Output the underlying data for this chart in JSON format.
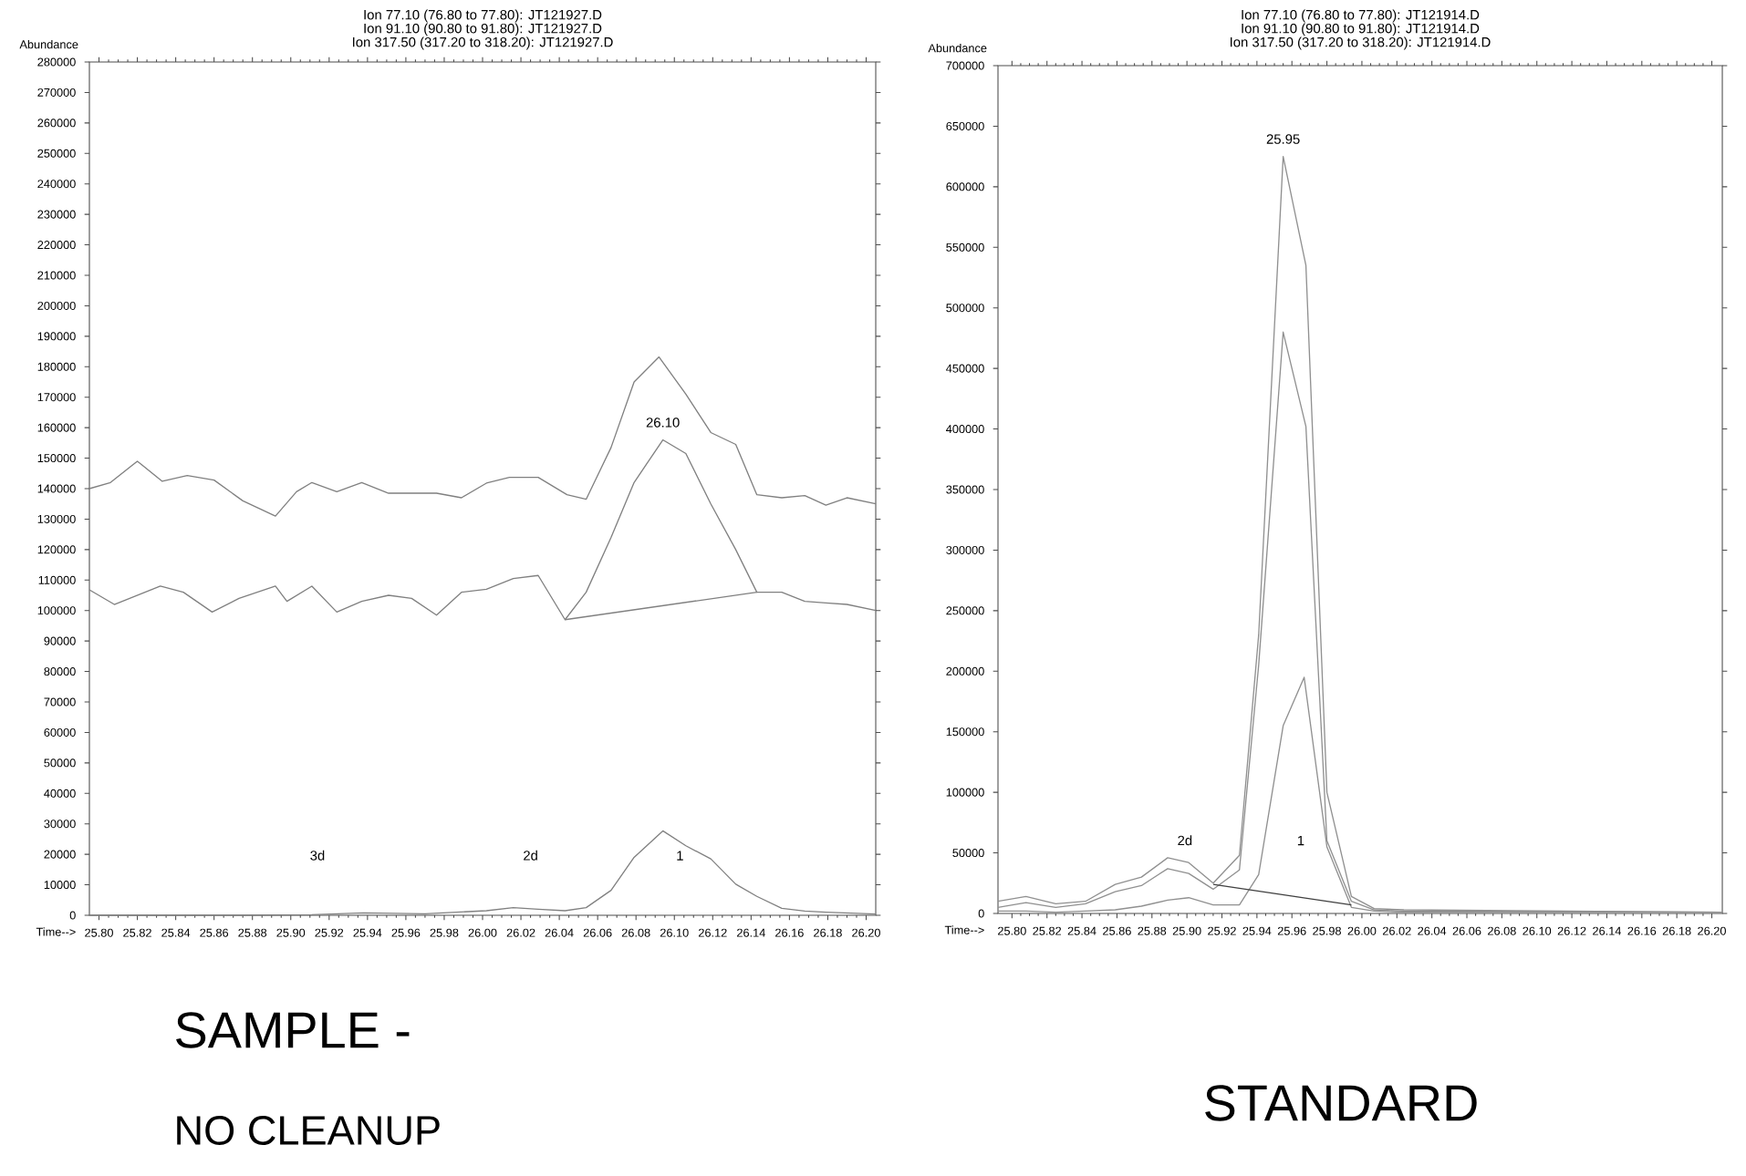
{
  "chart_data": [
    {
      "type": "line",
      "title": "Ion  77.10 (76.80 to 77.80): JT121927.D",
      "subtitle": "Ion  91.10 (90.80 to 91.80): JT121927.D",
      "xlabel": "Time-->",
      "ylabel": "Abundance",
      "annotations": [
        "Ion 317.50 (317.20 to 318.20): JT121927.D",
        "SAMPLE -",
        "NO CLEANUP",
        "3d",
        "2d",
        "1",
        {
          "text": "26.10",
          "x": 26.094,
          "y": 156000
        }
      ],
      "xlim": [
        25.795,
        26.205
      ],
      "ylim": [
        0,
        280000
      ],
      "xticks": [
        {
          "value": 25.8,
          "label": "25.80"
        },
        {
          "value": 25.82,
          "label": "25.82"
        },
        {
          "value": 25.84,
          "label": "25.84"
        },
        {
          "value": 25.86,
          "label": "25.86"
        },
        {
          "value": 25.88,
          "label": "25.88"
        },
        {
          "value": 25.9,
          "label": "25.90"
        },
        {
          "value": 25.92,
          "label": "25.92"
        },
        {
          "value": 25.94,
          "label": "25.94"
        },
        {
          "value": 25.96,
          "label": "25.96"
        },
        {
          "value": 25.98,
          "label": "25.98"
        },
        {
          "value": 26.0,
          "label": "26.00"
        },
        {
          "value": 26.02,
          "label": "26.02"
        },
        {
          "value": 26.04,
          "label": "26.04"
        },
        {
          "value": 26.06,
          "label": "26.06"
        },
        {
          "value": 26.08,
          "label": "26.08"
        },
        {
          "value": 26.1,
          "label": "26.10"
        },
        {
          "value": 26.12,
          "label": "26.12"
        },
        {
          "value": 26.14,
          "label": "26.14"
        },
        {
          "value": 26.16,
          "label": "26.16"
        },
        {
          "value": 26.18,
          "label": "26.18"
        },
        {
          "value": 26.2,
          "label": "26.20"
        }
      ],
      "yticks": [
        0,
        10000,
        20000,
        30000,
        40000,
        50000,
        60000,
        70000,
        80000,
        90000,
        100000,
        110000,
        120000,
        130000,
        140000,
        150000,
        160000,
        170000,
        180000,
        190000,
        200000,
        210000,
        220000,
        230000,
        240000,
        250000,
        260000,
        270000,
        280000
      ],
      "series": [
        {
          "color": "#808080",
          "x": [
            25.795,
            25.806,
            25.82,
            25.833,
            25.846,
            25.86,
            25.875,
            25.892,
            25.903,
            25.911,
            25.924,
            25.937,
            25.951,
            25.976,
            25.989,
            26.002,
            26.014,
            26.029,
            26.044,
            26.054,
            26.067,
            26.079,
            26.092,
            26.106,
            26.119,
            26.132,
            26.143,
            26.156,
            26.168,
            26.179,
            26.19,
            26.205
          ],
          "values": [
            140000,
            142000,
            149000,
            142400,
            144300,
            142800,
            136000,
            131000,
            139000,
            142000,
            139000,
            142000,
            138500,
            138500,
            137000,
            141800,
            143700,
            143700,
            138000,
            136500,
            153500,
            175000,
            183200,
            171000,
            158400,
            154500,
            138000,
            137000,
            137700,
            134600,
            137000,
            135000
          ]
        },
        {
          "color": "#808080",
          "x": [
            25.795,
            25.808,
            25.832,
            25.844,
            25.859,
            25.873,
            25.892,
            25.898,
            25.911,
            25.924,
            25.937,
            25.951,
            25.963,
            25.976,
            25.989,
            26.002,
            26.016,
            26.029,
            26.043,
            26.054,
            26.067,
            26.079,
            26.094,
            26.106,
            26.119,
            26.132,
            26.143,
            26.156,
            26.168,
            26.179,
            26.19,
            26.205
          ],
          "values": [
            106800,
            102000,
            108000,
            106000,
            99500,
            104000,
            108000,
            103000,
            108000,
            99500,
            103000,
            105000,
            104000,
            98500,
            106000,
            107000,
            110500,
            111500,
            97000,
            106000,
            124000,
            142000,
            156000,
            151500,
            135000,
            120000,
            106000,
            106000,
            103000,
            102500,
            102000,
            100000
          ]
        },
        {
          "color": "#808080",
          "x": [
            25.795,
            25.875,
            25.911,
            25.938,
            25.97,
            26.002,
            26.016,
            26.029,
            26.043,
            26.054,
            26.067,
            26.079,
            26.094,
            26.106,
            26.119,
            26.132,
            26.143,
            26.156,
            26.168,
            26.179,
            26.205
          ],
          "values": [
            0,
            0,
            200,
            800,
            500,
            1500,
            2500,
            2000,
            1500,
            2500,
            8200,
            19000,
            27700,
            22800,
            18500,
            10200,
            6200,
            2300,
            1400,
            1000,
            400
          ]
        },
        {
          "color": "#808080",
          "x": [
            26.043,
            26.143
          ],
          "values": [
            97000,
            106000
          ]
        }
      ]
    },
    {
      "type": "line",
      "title": "Ion  77.10 (76.80 to 77.80): JT121914.D",
      "subtitle": "Ion  91.10 (90.80 to 91.80): JT121914.D",
      "xlabel": "Time-->",
      "ylabel": "Abundance",
      "annotations": [
        "Ion 317.50 (317.20 to 318.20): JT121914.D",
        "STANDARD",
        "2d",
        "1",
        {
          "text": "25.95",
          "x": 25.955,
          "y": 625000
        }
      ],
      "xlim": [
        25.792,
        26.206
      ],
      "ylim": [
        0,
        700000
      ],
      "xticks": [
        {
          "value": 25.8,
          "label": "25.80"
        },
        {
          "value": 25.82,
          "label": "25.82"
        },
        {
          "value": 25.84,
          "label": "25.84"
        },
        {
          "value": 25.86,
          "label": "25.86"
        },
        {
          "value": 25.88,
          "label": "25.88"
        },
        {
          "value": 25.9,
          "label": "25.90"
        },
        {
          "value": 25.92,
          "label": "25.92"
        },
        {
          "value": 25.94,
          "label": "25.94"
        },
        {
          "value": 25.96,
          "label": "25.96"
        },
        {
          "value": 25.98,
          "label": "25.98"
        },
        {
          "value": 26.0,
          "label": "26.00"
        },
        {
          "value": 26.02,
          "label": "26.02"
        },
        {
          "value": 26.04,
          "label": "26.04"
        },
        {
          "value": 26.06,
          "label": "26.06"
        },
        {
          "value": 26.08,
          "label": "26.08"
        },
        {
          "value": 26.1,
          "label": "26.10"
        },
        {
          "value": 26.12,
          "label": "26.12"
        },
        {
          "value": 26.14,
          "label": "26.14"
        },
        {
          "value": 26.16,
          "label": "26.16"
        },
        {
          "value": 26.18,
          "label": "26.18"
        },
        {
          "value": 26.2,
          "label": "26.20"
        }
      ],
      "yticks": [
        0,
        50000,
        100000,
        150000,
        200000,
        250000,
        300000,
        350000,
        400000,
        450000,
        500000,
        550000,
        600000,
        650000,
        700000
      ],
      "series": [
        {
          "color": "#909090",
          "x": [
            25.792,
            25.808,
            25.825,
            25.842,
            25.859,
            25.874,
            25.889,
            25.901,
            25.915,
            25.93,
            25.941,
            25.955,
            25.968,
            25.98,
            25.994,
            26.007,
            26.024,
            26.206
          ],
          "values": [
            10000,
            14000,
            8000,
            10000,
            24000,
            30000,
            46000,
            42000,
            25000,
            48000,
            230000,
            625000,
            535000,
            100000,
            14000,
            4000,
            3000,
            1000
          ]
        },
        {
          "color": "#909090",
          "x": [
            25.792,
            25.808,
            25.825,
            25.842,
            25.859,
            25.874,
            25.889,
            25.901,
            25.915,
            25.93,
            25.941,
            25.955,
            25.968,
            25.98,
            25.994,
            26.007,
            26.024,
            26.206
          ],
          "values": [
            5000,
            9000,
            5000,
            8000,
            18000,
            23000,
            37000,
            33000,
            20000,
            36000,
            205000,
            480000,
            402000,
            60000,
            10000,
            3000,
            2000,
            1000
          ]
        },
        {
          "color": "#909090",
          "x": [
            25.792,
            25.808,
            25.825,
            25.842,
            25.859,
            25.874,
            25.889,
            25.901,
            25.915,
            25.93,
            25.941,
            25.955,
            25.967,
            25.98,
            25.994,
            26.007,
            26.024,
            26.206
          ],
          "values": [
            2000,
            2000,
            1000,
            2000,
            3000,
            6000,
            11000,
            13000,
            7000,
            7000,
            32000,
            155000,
            195000,
            55000,
            5000,
            2000,
            1000,
            1000
          ]
        },
        {
          "color": "#404040",
          "x": [
            25.915,
            25.994
          ],
          "values": [
            24000,
            7000
          ]
        }
      ]
    }
  ]
}
